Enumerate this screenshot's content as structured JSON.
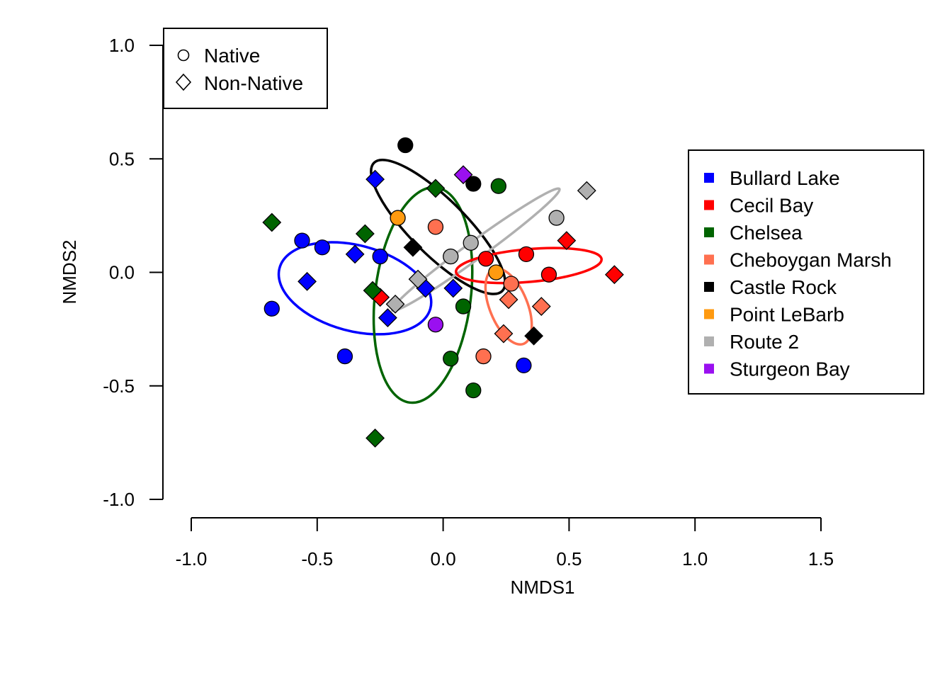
{
  "chart_data": {
    "type": "scatter",
    "xlabel": "NMDS1",
    "ylabel": "NMDS2",
    "xlim": [
      -1.0,
      1.5
    ],
    "ylim": [
      -1.0,
      1.0
    ],
    "x_ticks": [
      "-1.0",
      "-0.5",
      "0.0",
      "0.5",
      "1.0",
      "1.5"
    ],
    "y_ticks": [
      "1.0",
      "0.5",
      "0.0",
      "-0.5",
      "-1.0"
    ],
    "shape_legend": {
      "position": "top-left",
      "items": [
        {
          "label": "Native",
          "shape": "circle"
        },
        {
          "label": "Non-Native",
          "shape": "diamond"
        }
      ]
    },
    "color_legend": {
      "position": "right",
      "items": [
        {
          "label": "Bullard Lake",
          "color": "#0000ff"
        },
        {
          "label": "Cecil Bay",
          "color": "#ff0000"
        },
        {
          "label": "Chelsea",
          "color": "#006400"
        },
        {
          "label": "Cheboygan Marsh",
          "color": "#ff7050"
        },
        {
          "label": "Castle Rock",
          "color": "#000000"
        },
        {
          "label": "Point LeBarb",
          "color": "#ff9a10"
        },
        {
          "label": "Route 2",
          "color": "#b0b0b0"
        },
        {
          "label": "Sturgeon Bay",
          "color": "#9a10f0"
        }
      ]
    },
    "ellipses": [
      {
        "group": "Bullard Lake",
        "color": "#0000ff",
        "cx": -0.35,
        "cy": -0.07,
        "rx": 0.31,
        "ry": 0.17,
        "angle": -15
      },
      {
        "group": "Chelsea",
        "color": "#006400",
        "cx": -0.08,
        "cy": -0.1,
        "rx": 0.43,
        "ry": 0.19,
        "angle": 83
      },
      {
        "group": "Castle Rock",
        "color": "#000000",
        "cx": -0.02,
        "cy": 0.2,
        "rx": 0.36,
        "ry": 0.11,
        "angle": -45
      },
      {
        "group": "Route 2",
        "color": "#b0b0b0",
        "cx": 0.13,
        "cy": 0.1,
        "rx": 0.41,
        "ry": 0.035,
        "angle": 36
      },
      {
        "group": "Cecil Bay",
        "color": "#ff0000",
        "cx": 0.34,
        "cy": 0.03,
        "rx": 0.29,
        "ry": 0.065,
        "angle": 5
      },
      {
        "group": "Cheboygan Marsh",
        "color": "#ff7050",
        "cx": 0.26,
        "cy": -0.15,
        "rx": 0.16,
        "ry": 0.075,
        "angle": -68
      }
    ],
    "points": [
      {
        "group": "Bullard Lake",
        "shape": "circle",
        "x": -0.56,
        "y": 0.14
      },
      {
        "group": "Bullard Lake",
        "shape": "circle",
        "x": -0.48,
        "y": 0.11
      },
      {
        "group": "Bullard Lake",
        "shape": "circle",
        "x": -0.68,
        "y": -0.16
      },
      {
        "group": "Bullard Lake",
        "shape": "circle",
        "x": -0.39,
        "y": -0.37
      },
      {
        "group": "Bullard Lake",
        "shape": "circle",
        "x": -0.25,
        "y": 0.07
      },
      {
        "group": "Bullard Lake",
        "shape": "circle",
        "x": 0.32,
        "y": -0.41
      },
      {
        "group": "Bullard Lake",
        "shape": "diamond",
        "x": -0.27,
        "y": 0.41
      },
      {
        "group": "Bullard Lake",
        "shape": "diamond",
        "x": -0.35,
        "y": 0.08
      },
      {
        "group": "Bullard Lake",
        "shape": "diamond",
        "x": -0.54,
        "y": -0.04
      },
      {
        "group": "Bullard Lake",
        "shape": "diamond",
        "x": -0.22,
        "y": -0.2
      },
      {
        "group": "Bullard Lake",
        "shape": "diamond",
        "x": -0.07,
        "y": -0.07
      },
      {
        "group": "Bullard Lake",
        "shape": "diamond",
        "x": 0.04,
        "y": -0.07
      },
      {
        "group": "Cecil Bay",
        "shape": "circle",
        "x": 0.33,
        "y": 0.08
      },
      {
        "group": "Cecil Bay",
        "shape": "circle",
        "x": 0.42,
        "y": -0.01
      },
      {
        "group": "Cecil Bay",
        "shape": "circle",
        "x": 0.17,
        "y": 0.06
      },
      {
        "group": "Cecil Bay",
        "shape": "diamond",
        "x": 0.49,
        "y": 0.14
      },
      {
        "group": "Cecil Bay",
        "shape": "diamond",
        "x": 0.68,
        "y": -0.01
      },
      {
        "group": "Cecil Bay",
        "shape": "diamond",
        "x": -0.25,
        "y": -0.11
      },
      {
        "group": "Chelsea",
        "shape": "circle",
        "x": 0.22,
        "y": 0.38
      },
      {
        "group": "Chelsea",
        "shape": "circle",
        "x": 0.08,
        "y": -0.15
      },
      {
        "group": "Chelsea",
        "shape": "circle",
        "x": 0.03,
        "y": -0.38
      },
      {
        "group": "Chelsea",
        "shape": "circle",
        "x": 0.12,
        "y": -0.52
      },
      {
        "group": "Chelsea",
        "shape": "diamond",
        "x": -0.68,
        "y": 0.22
      },
      {
        "group": "Chelsea",
        "shape": "diamond",
        "x": -0.31,
        "y": 0.17
      },
      {
        "group": "Chelsea",
        "shape": "diamond",
        "x": -0.03,
        "y": 0.37
      },
      {
        "group": "Chelsea",
        "shape": "diamond",
        "x": -0.28,
        "y": -0.08
      },
      {
        "group": "Chelsea",
        "shape": "diamond",
        "x": -0.27,
        "y": -0.73
      },
      {
        "group": "Cheboygan Marsh",
        "shape": "circle",
        "x": -0.03,
        "y": 0.2
      },
      {
        "group": "Cheboygan Marsh",
        "shape": "circle",
        "x": 0.27,
        "y": -0.05
      },
      {
        "group": "Cheboygan Marsh",
        "shape": "circle",
        "x": 0.16,
        "y": -0.37
      },
      {
        "group": "Cheboygan Marsh",
        "shape": "diamond",
        "x": 0.26,
        "y": -0.12
      },
      {
        "group": "Cheboygan Marsh",
        "shape": "diamond",
        "x": 0.39,
        "y": -0.15
      },
      {
        "group": "Cheboygan Marsh",
        "shape": "diamond",
        "x": 0.24,
        "y": -0.27
      },
      {
        "group": "Castle Rock",
        "shape": "circle",
        "x": -0.15,
        "y": 0.56
      },
      {
        "group": "Castle Rock",
        "shape": "circle",
        "x": 0.12,
        "y": 0.39
      },
      {
        "group": "Castle Rock",
        "shape": "diamond",
        "x": -0.12,
        "y": 0.11
      },
      {
        "group": "Castle Rock",
        "shape": "diamond",
        "x": 0.36,
        "y": -0.28
      },
      {
        "group": "Point LeBarb",
        "shape": "circle",
        "x": -0.18,
        "y": 0.24
      },
      {
        "group": "Point LeBarb",
        "shape": "circle",
        "x": 0.21,
        "y": 0.0
      },
      {
        "group": "Route 2",
        "shape": "circle",
        "x": 0.45,
        "y": 0.24
      },
      {
        "group": "Route 2",
        "shape": "circle",
        "x": 0.11,
        "y": 0.13
      },
      {
        "group": "Route 2",
        "shape": "circle",
        "x": 0.03,
        "y": 0.07
      },
      {
        "group": "Route 2",
        "shape": "diamond",
        "x": 0.57,
        "y": 0.36
      },
      {
        "group": "Route 2",
        "shape": "diamond",
        "x": -0.19,
        "y": -0.14
      },
      {
        "group": "Route 2",
        "shape": "diamond",
        "x": -0.1,
        "y": -0.03
      },
      {
        "group": "Sturgeon Bay",
        "shape": "circle",
        "x": -0.03,
        "y": -0.23
      },
      {
        "group": "Sturgeon Bay",
        "shape": "diamond",
        "x": 0.08,
        "y": 0.43
      }
    ]
  }
}
